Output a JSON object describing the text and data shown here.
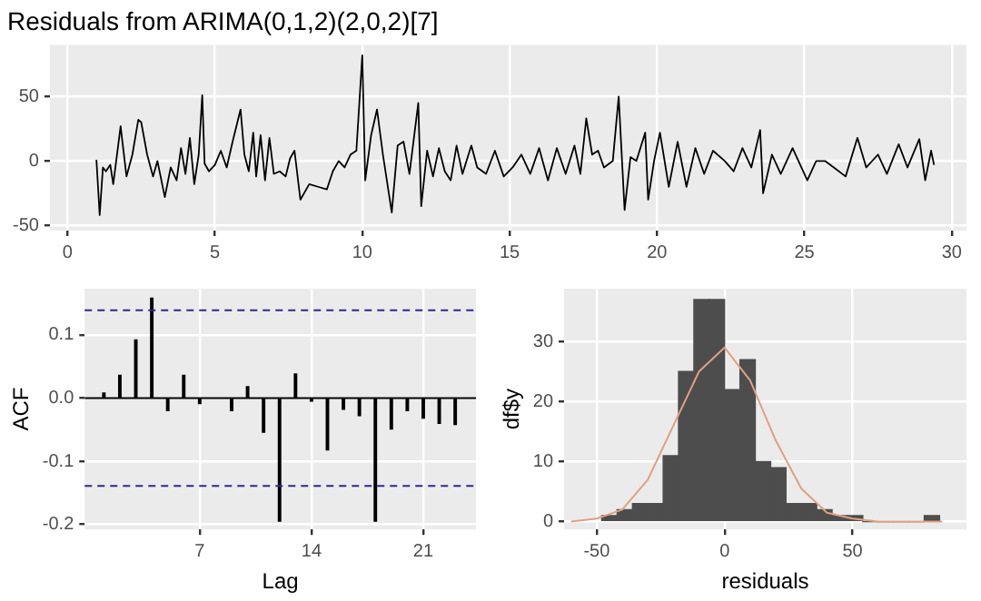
{
  "chart_data": [
    {
      "type": "line",
      "title": "Residuals from ARIMA(0,1,2)(2,0,2)[7]",
      "xlim": [
        -0.6,
        30.5
      ],
      "ylim": [
        -54,
        90
      ],
      "xticks": [
        0,
        5,
        10,
        15,
        20,
        25,
        30
      ],
      "yticks": [
        -50,
        0,
        50
      ],
      "grid": true,
      "legend": false,
      "series": [
        {
          "color": "#000000",
          "x": [
            0.98,
            1.09,
            1.2,
            1.3,
            1.45,
            1.55,
            1.8,
            2.0,
            2.2,
            2.4,
            2.5,
            2.7,
            2.9,
            3.05,
            3.3,
            3.5,
            3.7,
            3.85,
            4.0,
            4.15,
            4.3,
            4.45,
            4.57,
            4.65,
            4.8,
            5.0,
            5.2,
            5.4,
            5.6,
            5.87,
            6.0,
            6.15,
            6.3,
            6.4,
            6.55,
            6.7,
            6.85,
            7.0,
            7.2,
            7.4,
            7.55,
            7.7,
            7.9,
            8.2,
            8.5,
            8.8,
            9.0,
            9.2,
            9.4,
            9.6,
            9.8,
            10.0,
            10.1,
            10.3,
            10.5,
            10.7,
            11.0,
            11.2,
            11.4,
            11.6,
            11.9,
            12.0,
            12.2,
            12.4,
            12.6,
            12.8,
            13.0,
            13.2,
            13.4,
            13.7,
            13.9,
            14.2,
            14.5,
            14.8,
            15.1,
            15.4,
            15.7,
            16.0,
            16.3,
            16.6,
            16.9,
            17.2,
            17.4,
            17.6,
            17.8,
            18.0,
            18.2,
            18.5,
            18.7,
            18.9,
            19.1,
            19.3,
            19.6,
            19.7,
            19.9,
            20.1,
            20.4,
            20.7,
            21.0,
            21.3,
            21.6,
            21.9,
            22.3,
            22.6,
            22.9,
            23.2,
            23.5,
            23.6,
            23.9,
            24.2,
            24.6,
            25.1,
            25.4,
            25.7,
            26.0,
            26.4,
            26.8,
            27.1,
            27.5,
            27.8,
            28.2,
            28.5,
            28.9,
            29.1,
            29.3,
            29.4
          ],
          "values": [
            1,
            -42,
            -5,
            -8,
            -3,
            -18,
            27,
            -12,
            5,
            32,
            30,
            5,
            -12,
            0,
            -28,
            -5,
            -15,
            10,
            -10,
            18,
            -18,
            5,
            51,
            -2,
            -8,
            -3,
            8,
            -5,
            15,
            40,
            5,
            -8,
            22,
            -12,
            20,
            -15,
            18,
            -10,
            -8,
            -12,
            2,
            8,
            -30,
            -18,
            -20,
            -22,
            -8,
            0,
            -5,
            5,
            8,
            82,
            -15,
            20,
            40,
            5,
            -40,
            12,
            15,
            -10,
            45,
            -35,
            8,
            -12,
            10,
            -8,
            -15,
            12,
            -10,
            12,
            -5,
            -10,
            8,
            -12,
            -5,
            5,
            -10,
            10,
            -15,
            10,
            -10,
            12,
            -10,
            33,
            5,
            8,
            -5,
            0,
            50,
            -38,
            3,
            0,
            22,
            -30,
            0,
            22,
            -20,
            15,
            -20,
            10,
            -10,
            8,
            0,
            -8,
            10,
            -5,
            24,
            -25,
            5,
            -10,
            10,
            -15,
            0,
            0,
            -5,
            -12,
            18,
            -5,
            5,
            -10,
            13,
            -5,
            17,
            -15,
            8,
            -3
          ]
        }
      ]
    },
    {
      "type": "bar",
      "xlabel": "Lag",
      "ylabel": "ACF",
      "xlim": [
        -0.2,
        24.3
      ],
      "ylim": [
        -0.208,
        0.173
      ],
      "xticks": [
        7,
        14,
        21
      ],
      "yticks": [
        -0.2,
        -0.1,
        {
          "value": 0,
          "label": "0.0"
        },
        0.1
      ],
      "grid": true,
      "legend": false,
      "x": [
        1,
        2,
        3,
        4,
        5,
        6,
        7,
        8,
        9,
        10,
        11,
        12,
        13,
        14,
        15,
        16,
        17,
        18,
        19,
        20,
        21,
        22,
        23
      ],
      "series": [
        {
          "color": "#000000",
          "values": [
            0.008,
            0.036,
            0.092,
            0.158,
            -0.02,
            0.036,
            -0.009,
            null,
            -0.02,
            0.018,
            -0.054,
            -0.195,
            0.038,
            -0.005,
            -0.082,
            -0.018,
            -0.028,
            -0.195,
            -0.049,
            -0.02,
            -0.032,
            -0.04,
            -0.042
          ]
        }
      ],
      "ref_lines": [
        {
          "axis": "y",
          "value": 0.139,
          "color": "#2b2b8c",
          "line_style": "dashed"
        },
        {
          "axis": "y",
          "value": -0.139,
          "color": "#2b2b8c",
          "line_style": "dashed"
        },
        {
          "axis": "y",
          "value": 0,
          "color": "#000000",
          "line_style": "solid"
        }
      ]
    },
    {
      "type": "histogram",
      "xlabel": "residuals",
      "ylabel": "df$y",
      "xlim": [
        -62.7,
        94.5
      ],
      "ylim": [
        -1.3,
        38.8
      ],
      "xticks": [
        -50,
        0,
        50
      ],
      "yticks": [
        0,
        10,
        20,
        30
      ],
      "grid": true,
      "legend": false,
      "bins": [
        -48,
        -42,
        -36,
        -30,
        -24,
        -18,
        -12,
        -6,
        0,
        6,
        12,
        18,
        24,
        30,
        36,
        42,
        48,
        54,
        60,
        66,
        72,
        78,
        84
      ],
      "values": [
        1,
        2,
        3,
        3,
        11,
        25,
        37,
        37,
        22,
        27,
        10,
        9,
        3,
        3,
        2,
        1,
        1,
        0,
        0,
        0,
        0,
        1
      ],
      "color": "#4d4d4d",
      "series": [
        {
          "type": "line",
          "color": "#e0a080",
          "x": [
            -60,
            -50,
            -40,
            -30,
            -20,
            -10,
            0,
            10,
            20,
            30,
            40,
            50,
            60,
            70,
            85
          ],
          "values": [
            0,
            0.5,
            2,
            7,
            16,
            25,
            29,
            23.5,
            13.5,
            5.5,
            1.5,
            0.5,
            0,
            0,
            0
          ]
        }
      ]
    }
  ]
}
